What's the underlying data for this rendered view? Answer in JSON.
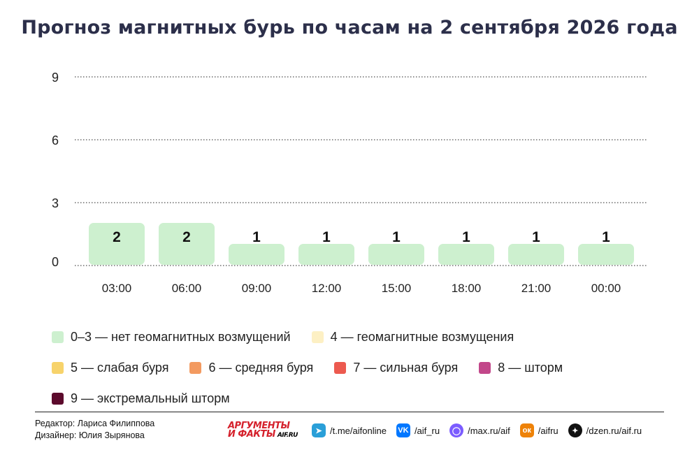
{
  "title": "Прогноз магнитных бурь по часам на 2 сентября 2026 года",
  "chart_data": {
    "type": "bar",
    "title": "Прогноз магнитных бурь по часам на 2 сентября 2026 года",
    "categories": [
      "03:00",
      "06:00",
      "09:00",
      "12:00",
      "15:00",
      "18:00",
      "21:00",
      "00:00"
    ],
    "values": [
      2,
      2,
      1,
      1,
      1,
      1,
      1,
      1
    ],
    "y_ticks": [
      "0",
      "3",
      "6",
      "9"
    ],
    "ylim": [
      0,
      9
    ],
    "grid": "dotted horizontal",
    "bar_color": "#cdf0cf",
    "legend_position": "bottom"
  },
  "legend": [
    [
      {
        "label": "0–3 — нет геомагнитных возмущений",
        "color": "#cdf0cf"
      },
      {
        "label": "4 — геомагнитные возмущения",
        "color": "#fdf0c4"
      }
    ],
    [
      {
        "label": "5 — слабая буря",
        "color": "#f7d36b"
      },
      {
        "label": "6 — средняя буря",
        "color": "#f39a60"
      },
      {
        "label": "7 — сильная буря",
        "color": "#ec5a4f"
      },
      {
        "label": "8 — шторм",
        "color": "#c2478a"
      }
    ],
    [
      {
        "label": "9 — экстремальный шторм",
        "color": "#5c0a2c"
      }
    ]
  ],
  "footer": {
    "editor": "Редактор: Лариса Филиппова",
    "designer": "Дизайнер: Юлия Зырянова",
    "logo_line1": "АРГУМЕНТЫ",
    "logo_line2": "И ФАКТЫ",
    "logo_site": "AIF.RU",
    "socials": [
      {
        "icon": "telegram-icon",
        "text": "/t.me/aifonline",
        "color": "#2a9fd8",
        "glyph": "➤"
      },
      {
        "icon": "vk-icon",
        "text": "/aif_ru",
        "color": "#0077ff",
        "glyph": "VK"
      },
      {
        "icon": "max-icon",
        "text": "/max.ru/aif",
        "color": "#7b5cff",
        "glyph": "◯"
      },
      {
        "icon": "odnoklassniki-icon",
        "text": "/aifru",
        "color": "#ee8208",
        "glyph": "ок"
      },
      {
        "icon": "dzen-icon",
        "text": "/dzen.ru/aif.ru",
        "color": "#111111",
        "glyph": "✦"
      }
    ]
  }
}
